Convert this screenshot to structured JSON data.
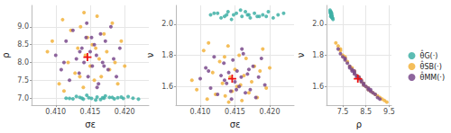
{
  "chart_data": [
    {
      "type": "scatter",
      "xlabel": "σε",
      "ylabel": "ρ",
      "grid": true,
      "xlim": [
        0.4065,
        0.4235
      ],
      "xticks": [
        {
          "value": 0.41,
          "label": "0.410"
        },
        {
          "value": 0.415,
          "label": "0.415"
        },
        {
          "value": 0.42,
          "label": "0.420"
        }
      ],
      "ylim": [
        6.8,
        9.6
      ],
      "yticks": [
        {
          "value": 7,
          "label": "7.0"
        },
        7.5,
        {
          "value": 8,
          "label": "8.0"
        },
        8.5,
        {
          "value": 9,
          "label": "9.0"
        }
      ],
      "series": [
        {
          "name": "θ̂G(·)",
          "color": "#3fb0a6",
          "marker": "circle",
          "x": [
            0.4115,
            0.4125,
            0.4135,
            0.414,
            0.4148,
            0.4152,
            0.416,
            0.4165,
            0.417,
            0.4178,
            0.4185,
            0.419,
            0.4198,
            0.4205,
            0.4212,
            0.422,
            0.413,
            0.4145,
            0.4158,
            0.4172,
            0.4182,
            0.412,
            0.4195,
            0.4138,
            0.4168
          ],
          "y": [
            7.0,
            6.98,
            7.02,
            6.97,
            7.01,
            6.99,
            7.03,
            6.96,
            7.0,
            7.02,
            6.98,
            7.01,
            6.99,
            7.04,
            7.0,
            6.97,
            7.05,
            7.08,
            6.95,
            7.06,
            7.02,
            6.99,
            7.03,
            7.0,
            7.01
          ]
        },
        {
          "name": "θ̂SB(·)",
          "color": "#f2b33d",
          "marker": "circle",
          "x": [
            0.4095,
            0.4105,
            0.411,
            0.4118,
            0.4122,
            0.4128,
            0.4132,
            0.4136,
            0.414,
            0.4143,
            0.4146,
            0.415,
            0.4153,
            0.4156,
            0.416,
            0.4163,
            0.4166,
            0.417,
            0.4174,
            0.4178,
            0.4182,
            0.4186,
            0.419,
            0.4195,
            0.42,
            0.4088,
            0.4112,
            0.4141,
            0.4158,
            0.4135
          ],
          "y": [
            8.6,
            7.4,
            9.2,
            8.0,
            8.9,
            7.7,
            8.4,
            9.0,
            7.3,
            8.2,
            8.7,
            7.9,
            8.5,
            7.5,
            9.3,
            8.1,
            7.6,
            8.8,
            8.3,
            7.8,
            9.1,
            8.0,
            7.4,
            8.6,
            7.9,
            8.3,
            7.2,
            9.4,
            8.4,
            7.6
          ]
        },
        {
          "name": "θ̂MM(·)",
          "color": "#7a4a8c",
          "marker": "circle",
          "x": [
            0.41,
            0.4108,
            0.4115,
            0.412,
            0.4125,
            0.413,
            0.4134,
            0.4138,
            0.4141,
            0.4144,
            0.4147,
            0.415,
            0.4153,
            0.4156,
            0.4159,
            0.4162,
            0.4165,
            0.4168,
            0.4172,
            0.4176,
            0.418,
            0.4184,
            0.4188,
            0.4193,
            0.4112,
            0.4145,
            0.416,
            0.4135,
            0.4152,
            0.417
          ],
          "y": [
            8.2,
            7.8,
            8.6,
            7.5,
            8.9,
            8.1,
            7.7,
            8.4,
            8.0,
            8.7,
            7.6,
            8.3,
            7.9,
            8.5,
            8.2,
            7.4,
            8.8,
            8.0,
            8.6,
            7.8,
            9.0,
            8.1,
            7.6,
            8.4,
            8.0,
            9.1,
            7.3,
            8.3,
            8.7,
            7.9
          ]
        },
        {
          "color": "#ee1111",
          "marker": "cross",
          "x": [
            0.4146
          ],
          "y": [
            8.15
          ]
        }
      ]
    },
    {
      "type": "scatter",
      "xlabel": "σε",
      "ylabel": "ν",
      "grid": true,
      "xlim": [
        0.4065,
        0.4235
      ],
      "xticks": [
        {
          "value": 0.41,
          "label": "0.410"
        },
        {
          "value": 0.415,
          "label": "0.415"
        },
        {
          "value": 0.42,
          "label": "0.420"
        }
      ],
      "ylim": [
        1.48,
        2.12
      ],
      "yticks": [
        1.6,
        1.8,
        {
          "value": 2,
          "label": "2.0"
        }
      ],
      "series": [
        {
          "name": "θ̂G(·)",
          "color": "#3fb0a6",
          "marker": "circle",
          "x": [
            0.4115,
            0.4125,
            0.4135,
            0.414,
            0.4148,
            0.4152,
            0.416,
            0.4165,
            0.417,
            0.4178,
            0.4185,
            0.419,
            0.4198,
            0.4205,
            0.4212,
            0.422,
            0.413,
            0.4145,
            0.4158,
            0.4172,
            0.4182,
            0.412,
            0.4195,
            0.4138,
            0.4168
          ],
          "y": [
            2.06,
            2.07,
            2.05,
            2.08,
            2.06,
            2.07,
            2.05,
            2.08,
            2.06,
            2.07,
            2.05,
            2.06,
            2.08,
            2.04,
            2.06,
            2.07,
            2.04,
            2.03,
            2.09,
            2.04,
            2.05,
            2.07,
            2.05,
            2.06,
            2.06
          ]
        },
        {
          "name": "θ̂SB(·)",
          "color": "#f2b33d",
          "marker": "circle",
          "x": [
            0.4095,
            0.4105,
            0.411,
            0.4118,
            0.4122,
            0.4128,
            0.4132,
            0.4136,
            0.414,
            0.4143,
            0.4146,
            0.415,
            0.4153,
            0.4156,
            0.416,
            0.4163,
            0.4166,
            0.417,
            0.4174,
            0.4178,
            0.4182,
            0.4186,
            0.419,
            0.4195,
            0.42,
            0.4088,
            0.4112,
            0.4141,
            0.4158,
            0.4135
          ],
          "y": [
            1.58,
            1.83,
            1.52,
            1.69,
            1.55,
            1.76,
            1.62,
            1.54,
            1.86,
            1.66,
            1.57,
            1.71,
            1.6,
            1.8,
            1.51,
            1.67,
            1.78,
            1.56,
            1.63,
            1.73,
            1.53,
            1.7,
            1.84,
            1.59,
            1.72,
            1.64,
            1.88,
            1.5,
            1.61,
            1.79
          ]
        },
        {
          "name": "θ̂MM(·)",
          "color": "#7a4a8c",
          "marker": "circle",
          "x": [
            0.41,
            0.4108,
            0.4115,
            0.412,
            0.4125,
            0.413,
            0.4134,
            0.4138,
            0.4141,
            0.4144,
            0.4147,
            0.415,
            0.4153,
            0.4156,
            0.4159,
            0.4162,
            0.4165,
            0.4168,
            0.4172,
            0.4176,
            0.418,
            0.4184,
            0.4188,
            0.4193,
            0.4112,
            0.4145,
            0.416,
            0.4135,
            0.4152,
            0.417
          ],
          "y": [
            1.65,
            1.72,
            1.59,
            1.79,
            1.55,
            1.67,
            1.75,
            1.62,
            1.69,
            1.57,
            1.77,
            1.63,
            1.7,
            1.6,
            1.66,
            1.81,
            1.56,
            1.68,
            1.58,
            1.73,
            1.53,
            1.66,
            1.78,
            1.61,
            1.7,
            1.52,
            1.84,
            1.64,
            1.58,
            1.71
          ]
        },
        {
          "color": "#ee1111",
          "marker": "cross",
          "x": [
            0.4146
          ],
          "y": [
            1.65
          ]
        }
      ]
    },
    {
      "type": "scatter",
      "xlabel": "ρ",
      "ylabel": "ν",
      "grid": true,
      "legend": "right",
      "xlim": [
        6.8,
        9.6
      ],
      "xticks": [
        7.5,
        8.5,
        9.5
      ],
      "ylim": [
        1.48,
        2.12
      ],
      "yticks": [
        1.6,
        1.8,
        {
          "value": 2,
          "label": "2.0"
        }
      ],
      "series": [
        {
          "name": "θ̂G(·)",
          "color": "#3fb0a6",
          "marker": "circle",
          "x": [
            7.0,
            6.98,
            7.02,
            6.97,
            7.01,
            6.99,
            7.03,
            6.96,
            7.0,
            7.02,
            6.98,
            7.01,
            6.99,
            7.04,
            7.0,
            6.97,
            7.05,
            7.08,
            6.95,
            7.06,
            7.02,
            6.99,
            7.03,
            7.0,
            7.01
          ],
          "y": [
            2.06,
            2.07,
            2.05,
            2.08,
            2.06,
            2.07,
            2.05,
            2.08,
            2.06,
            2.07,
            2.05,
            2.06,
            2.08,
            2.04,
            2.06,
            2.07,
            2.04,
            2.03,
            2.09,
            2.04,
            2.05,
            2.07,
            2.05,
            2.06,
            2.06
          ]
        },
        {
          "name": "θ̂SB(·)",
          "color": "#f2b33d",
          "marker": "circle",
          "x": [
            8.6,
            7.4,
            9.2,
            8.0,
            8.9,
            7.7,
            8.4,
            9.0,
            7.3,
            8.2,
            8.7,
            7.9,
            8.5,
            7.5,
            9.3,
            8.1,
            7.6,
            8.8,
            8.3,
            7.8,
            9.1,
            8.0,
            7.4,
            8.6,
            7.9,
            8.3,
            7.2,
            9.4,
            8.4,
            7.6
          ],
          "y": [
            1.58,
            1.83,
            1.52,
            1.69,
            1.55,
            1.76,
            1.62,
            1.54,
            1.86,
            1.66,
            1.57,
            1.71,
            1.6,
            1.8,
            1.51,
            1.67,
            1.78,
            1.56,
            1.63,
            1.73,
            1.53,
            1.7,
            1.84,
            1.59,
            1.72,
            1.64,
            1.88,
            1.5,
            1.61,
            1.79
          ]
        },
        {
          "name": "θ̂MM(·)",
          "color": "#7a4a8c",
          "marker": "circle",
          "x": [
            8.2,
            7.8,
            8.6,
            7.5,
            8.9,
            8.1,
            7.7,
            8.4,
            8.0,
            8.7,
            7.6,
            8.3,
            7.9,
            8.5,
            8.2,
            7.4,
            8.8,
            8.0,
            8.6,
            7.8,
            9.0,
            8.1,
            7.6,
            8.4,
            8.0,
            9.1,
            7.3,
            8.3,
            8.7,
            7.9
          ],
          "y": [
            1.65,
            1.72,
            1.59,
            1.79,
            1.55,
            1.67,
            1.75,
            1.62,
            1.69,
            1.57,
            1.77,
            1.63,
            1.7,
            1.6,
            1.66,
            1.81,
            1.56,
            1.68,
            1.58,
            1.73,
            1.53,
            1.66,
            1.78,
            1.61,
            1.7,
            1.52,
            1.84,
            1.64,
            1.58,
            1.71
          ]
        },
        {
          "color": "#ee1111",
          "marker": "cross",
          "x": [
            8.15
          ],
          "y": [
            1.65
          ]
        }
      ]
    }
  ]
}
